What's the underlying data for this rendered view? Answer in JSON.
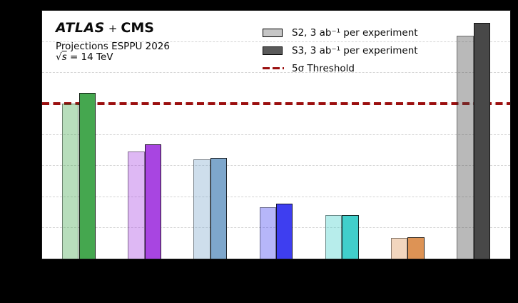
{
  "header": {
    "experiment1": "ATLAS",
    "plus": "+",
    "experiment2": "CMS",
    "subtitle": "Projections ESPPU 2026",
    "energy_sqrt": "√",
    "energy_s": "s",
    "energy_rest": " = 14 TeV"
  },
  "legend": {
    "items": [
      {
        "label": "S2, 3 ab⁻¹ per experiment",
        "swatch_color": "#c6c6c6",
        "type": "box"
      },
      {
        "label": "S3, 3 ab⁻¹ per experiment",
        "swatch_color": "#5a5a5a",
        "type": "box"
      },
      {
        "label": "5σ Threshold",
        "swatch_color": "#9b0f0f",
        "type": "dashed-line"
      }
    ]
  },
  "chart_data": {
    "type": "bar",
    "title": "ATLAS + CMS Projections ESPPU 2026, √s = 14 TeV",
    "categories": [
      "",
      "",
      "",
      "",
      "",
      "",
      ""
    ],
    "n_groups": 7,
    "group_colors": [
      "#45a74f",
      "#a845e1",
      "#7ea7cc",
      "#3e3ef0",
      "#41cfcb",
      "#dd9355",
      "#484848"
    ],
    "series": [
      {
        "id": "s2",
        "name": "S2, 3 ab⁻¹ per experiment",
        "fill_alpha": 0.38,
        "values": [
          5.0,
          3.45,
          3.2,
          1.65,
          1.4,
          0.68,
          7.2
        ]
      },
      {
        "id": "s3",
        "name": "S3, 3 ab⁻¹ per experiment",
        "fill_alpha": 1.0,
        "values": [
          5.35,
          3.68,
          3.25,
          1.77,
          1.4,
          0.7,
          7.6
        ]
      }
    ],
    "threshold": {
      "value": 5,
      "label": "5σ Threshold",
      "color": "#9b0f0f"
    },
    "ylim": [
      0,
      8
    ],
    "grid": {
      "step": 1,
      "style": "dashed",
      "color": "#d4d4d4",
      "on": true
    },
    "legend_position": "upper center",
    "background_outside_plot": "#000000",
    "plot_background": "#ffffff"
  }
}
